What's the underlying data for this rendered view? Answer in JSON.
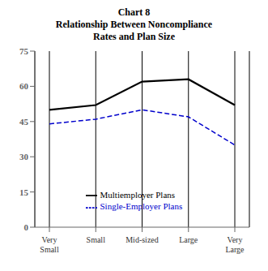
{
  "chart_data": {
    "type": "line",
    "title": "Chart 8\nRelationship Between Noncompliance\nRates and Plan Size",
    "categories": [
      "Very\nSmall",
      "Small",
      "Mid-sized",
      "Large",
      "Very\nLarge"
    ],
    "series": [
      {
        "name": "Single-Employer Plans",
        "color": "#0000cc",
        "line_style": "dashed",
        "values": [
          44,
          46,
          50,
          47,
          35
        ]
      },
      {
        "name": "Multiemployer Plans",
        "color": "#000000",
        "line_style": "solid",
        "values": [
          50,
          52,
          62,
          63,
          52
        ]
      }
    ],
    "ylim": [
      0,
      75
    ],
    "yticks": [
      0,
      15,
      30,
      45,
      60,
      75
    ],
    "grid": "x",
    "legend": "lower center"
  }
}
